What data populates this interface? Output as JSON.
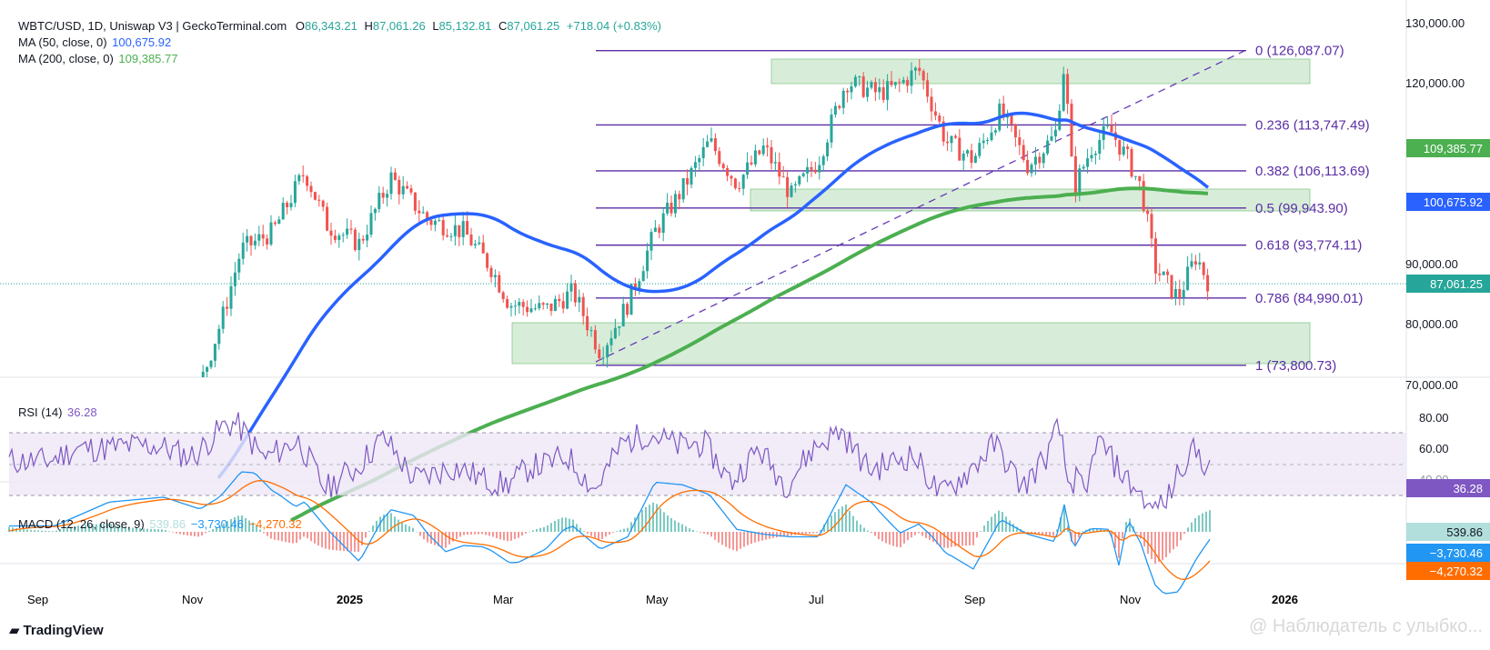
{
  "header": {
    "symbol": "WBTC/USD, 1D, Uniswap V3 | GeckoTerminal.com",
    "o_label": "O",
    "o": "86,343.21",
    "h_label": "H",
    "h": "87,061.26",
    "l_label": "L",
    "l": "85,132.81",
    "c_label": "C",
    "c": "87,061.25",
    "change": "+718.04 (+0.83%)"
  },
  "ma50": {
    "label": "MA (50, close, 0)",
    "value": "100,675.92",
    "color": "#2962ff"
  },
  "ma200": {
    "label": "MA (200, close, 0)",
    "value": "109,385.77",
    "color": "#4caf50"
  },
  "price_axis": {
    "ticks": [
      "130,000.00",
      "120,000.00",
      "90,000.00",
      "80,000.00",
      "70,000.00"
    ],
    "ma200_box": "109,385.77",
    "ma50_box": "100,675.92",
    "last_price_box": "87,061.25"
  },
  "fib_levels": [
    {
      "label": "0 (126,087.07)",
      "price": 126087.07
    },
    {
      "label": "0.236 (113,747.49)",
      "price": 113747.49
    },
    {
      "label": "0.382 (106,113.69)",
      "price": 106113.69
    },
    {
      "label": "0.5 (99,943.90)",
      "price": 99943.9
    },
    {
      "label": "0.618 (93,774.11)",
      "price": 93774.11
    },
    {
      "label": "0.786 (84,990.01)",
      "price": 84990.01
    },
    {
      "label": "1 (73,800.73)",
      "price": 73800.73
    }
  ],
  "rsi": {
    "label": "RSI (14)",
    "value": "36.28",
    "ticks": [
      "80.00",
      "60.00",
      "40.00"
    ],
    "box": "36.28",
    "color": "#7e57c2"
  },
  "macd": {
    "label": "MACD (12, 26, close, 9)",
    "hist": "539.86",
    "macd": "−3,730.46",
    "signal": "−4,270.32",
    "hist_box": "539.86",
    "macd_box": "−3,730.46",
    "signal_box": "−4,270.32"
  },
  "time_axis": [
    "Sep",
    "Nov",
    "2025",
    "Mar",
    "May",
    "Jul",
    "Sep",
    "Nov",
    "2026"
  ],
  "brand": "TradingView",
  "watermark": "@ Наблюдатель с улыбко..."
}
